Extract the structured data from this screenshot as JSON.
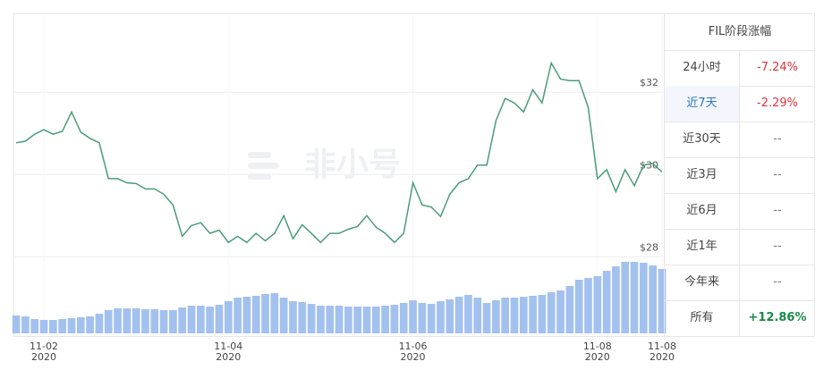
{
  "chart_data": {
    "type": "line",
    "watermark": "非小号",
    "x": [
      1.7,
      1.8,
      1.9,
      2.0,
      2.1,
      2.2,
      2.3,
      2.4,
      2.5,
      2.6,
      2.7,
      2.8,
      2.9,
      3.0,
      3.1,
      3.2,
      3.3,
      3.4,
      3.5,
      3.6,
      3.7,
      3.8,
      3.9,
      4.0,
      4.1,
      4.2,
      4.3,
      4.4,
      4.5,
      4.6,
      4.7,
      4.8,
      4.9,
      5.0,
      5.1,
      5.2,
      5.3,
      5.4,
      5.5,
      5.6,
      5.7,
      5.8,
      5.9,
      6.0,
      6.1,
      6.2,
      6.3,
      6.4,
      6.5,
      6.6,
      6.7,
      6.8,
      6.9,
      7.0,
      7.1,
      7.2,
      7.3,
      7.4,
      7.5,
      7.6,
      7.7,
      7.8,
      7.9,
      8.0,
      8.1,
      8.2,
      8.3,
      8.4,
      8.5,
      8.6,
      8.7
    ],
    "xlim": [
      1.67,
      8.7
    ],
    "xticks": [
      {
        "value": 2,
        "label": "11-02\n2020"
      },
      {
        "value": 4,
        "label": "11-04\n2020"
      },
      {
        "value": 6,
        "label": "11-06\n2020"
      },
      {
        "value": 8,
        "label": "11-08\n2020"
      },
      {
        "value": 8.7,
        "label": "11-08\n2020"
      }
    ],
    "ylim": [
      27.9,
      33.85
    ],
    "yticks": [
      {
        "value": 28,
        "label": "$28"
      },
      {
        "value": 30,
        "label": "$30"
      },
      {
        "value": 32,
        "label": "$32"
      }
    ],
    "y2lim": [
      0,
      80
    ],
    "grid": true,
    "series": [
      {
        "color": "#4a9c7a",
        "values": [
          30.77,
          30.81,
          30.98,
          31.09,
          30.98,
          31.05,
          31.52,
          31.03,
          30.88,
          30.77,
          29.9,
          29.9,
          29.8,
          29.78,
          29.65,
          29.65,
          29.52,
          29.26,
          28.5,
          28.76,
          28.83,
          28.57,
          28.65,
          28.35,
          28.5,
          28.35,
          28.57,
          28.39,
          28.57,
          29.0,
          28.44,
          28.78,
          28.57,
          28.35,
          28.57,
          28.57,
          28.67,
          28.74,
          29.0,
          28.72,
          28.57,
          28.35,
          28.57,
          29.8,
          29.26,
          29.21,
          28.98,
          29.52,
          29.8,
          29.9,
          30.23,
          30.23,
          31.31,
          31.85,
          31.74,
          31.52,
          32.06,
          31.74,
          32.71,
          32.32,
          32.28,
          32.28,
          31.63,
          29.9,
          30.12,
          29.58,
          30.12,
          29.73,
          30.23,
          30.27,
          30.06
        ]
      },
      {
        "type": "bar",
        "axis": "y2",
        "color": "#a3c1ef",
        "values": [
          20,
          19,
          16,
          15,
          15,
          16,
          17,
          18,
          19,
          22,
          26,
          28,
          28,
          28,
          27,
          27,
          26,
          26,
          29,
          31,
          31,
          30,
          32,
          36,
          40,
          41,
          42,
          44,
          45,
          40,
          36,
          35,
          33,
          31,
          31,
          31,
          30,
          30,
          30,
          30,
          31,
          32,
          34,
          37,
          34,
          33,
          36,
          38,
          41,
          43,
          40,
          34,
          37,
          40,
          40,
          41,
          42,
          43,
          46,
          48,
          53,
          60,
          62,
          64,
          70,
          75,
          80,
          80,
          79,
          76,
          72
        ]
      }
    ]
  },
  "table": {
    "title": "FIL阶段涨幅",
    "selected_row": 1,
    "rows": [
      [
        "24小时",
        "-7.24%"
      ],
      [
        "近7天",
        "-2.29%"
      ],
      [
        "近30天",
        "--"
      ],
      [
        "近3月",
        "--"
      ],
      [
        "近6月",
        "--"
      ],
      [
        "近1年",
        "--"
      ],
      [
        "今年来",
        "--"
      ],
      [
        "所有",
        "+12.86%"
      ]
    ]
  }
}
